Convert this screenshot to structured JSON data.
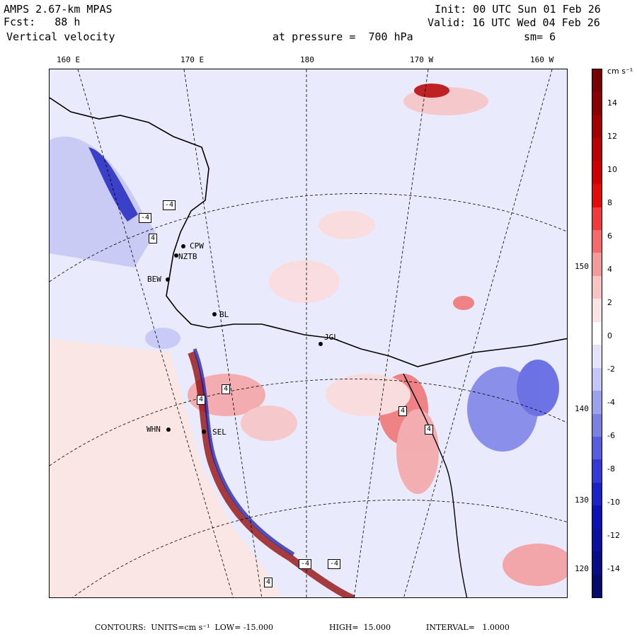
{
  "header": {
    "model": "AMPS 2.67-km MPAS",
    "forecast": "Fcst:   88 h",
    "field": "Vertical velocity",
    "init": "Init: 00 UTC Sun 01 Feb 26",
    "valid": "Valid: 16 UTC Wed 04 Feb 26",
    "pressure": "at pressure =  700 hPa",
    "smoothing": "sm= 6"
  },
  "longitude_labels_top": [
    "160 E",
    "170 E",
    "180",
    "170 W",
    "160 W"
  ],
  "longitude_labels_right": [
    "150 W",
    "140 W",
    "130 W",
    "120 W"
  ],
  "stations": [
    "CPW",
    "NZTB",
    "BEW",
    "BL",
    "JGL",
    "WHN",
    "SEL"
  ],
  "markers": [
    "-4",
    "-4",
    "4",
    "4",
    "4",
    "4",
    "4",
    "-4",
    "-4",
    "4"
  ],
  "colorbar": {
    "units": "cm s⁻¹",
    "ticks": [
      "14",
      "12",
      "10",
      "8",
      "6",
      "4",
      "2",
      "0",
      "-2",
      "-4",
      "-6",
      "-8",
      "-10",
      "-12",
      "-14"
    ],
    "colors": [
      "#7a0000",
      "#8c0000",
      "#a30000",
      "#ba0000",
      "#d00000",
      "#e60b0b",
      "#f23a3a",
      "#f56a6a",
      "#f59a9a",
      "#f8c3c3",
      "#fbe3e3",
      "#ffffff",
      "#e3e4fb",
      "#c3c6f6",
      "#9ca1ee",
      "#7a80e6",
      "#575ee0",
      "#333ad8",
      "#1a22cc",
      "#0b12b8",
      "#0a10a0",
      "#070d88",
      "#050a70"
    ]
  },
  "footer": {
    "contours": "CONTOURS:  UNITS=cm s⁻¹  LOW= -15.000",
    "high": "HIGH=  15.000",
    "interval": "INTERVAL=   1.0000"
  }
}
